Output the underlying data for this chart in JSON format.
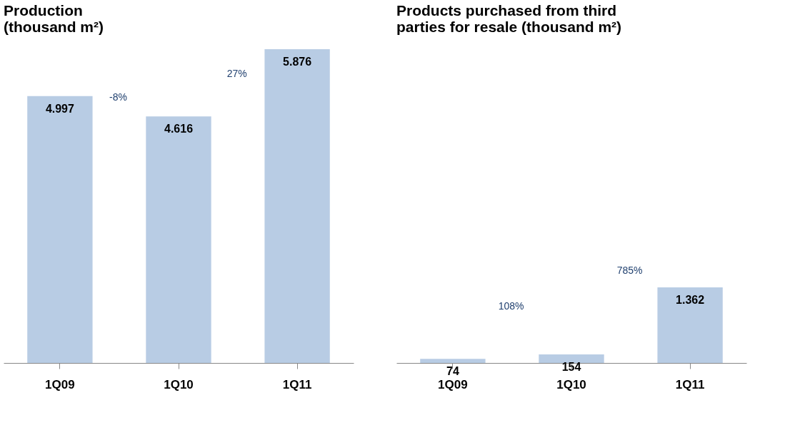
{
  "chart_data": [
    {
      "type": "bar",
      "title": [
        "Production",
        "(thousand m²)"
      ],
      "categories": [
        "1Q09",
        "1Q10",
        "1Q11"
      ],
      "values": [
        4997,
        4616,
        5876
      ],
      "value_labels": [
        "4.997",
        "4.616",
        "5.876"
      ],
      "color": "#b8cce4",
      "annotations": [
        "-8%",
        "27%"
      ],
      "grid": false,
      "legend": false
    },
    {
      "type": "bar",
      "title": [
        "Products purchased from third",
        "parties for resale (thousand m²)"
      ],
      "categories": [
        "1Q09",
        "1Q10",
        "1Q11"
      ],
      "values": [
        74,
        154,
        1362
      ],
      "value_labels": [
        "74",
        "154",
        "1.362"
      ],
      "color": "#b8cce4",
      "annotations": [
        "108%",
        "785%"
      ],
      "grid": false,
      "legend": false
    }
  ]
}
